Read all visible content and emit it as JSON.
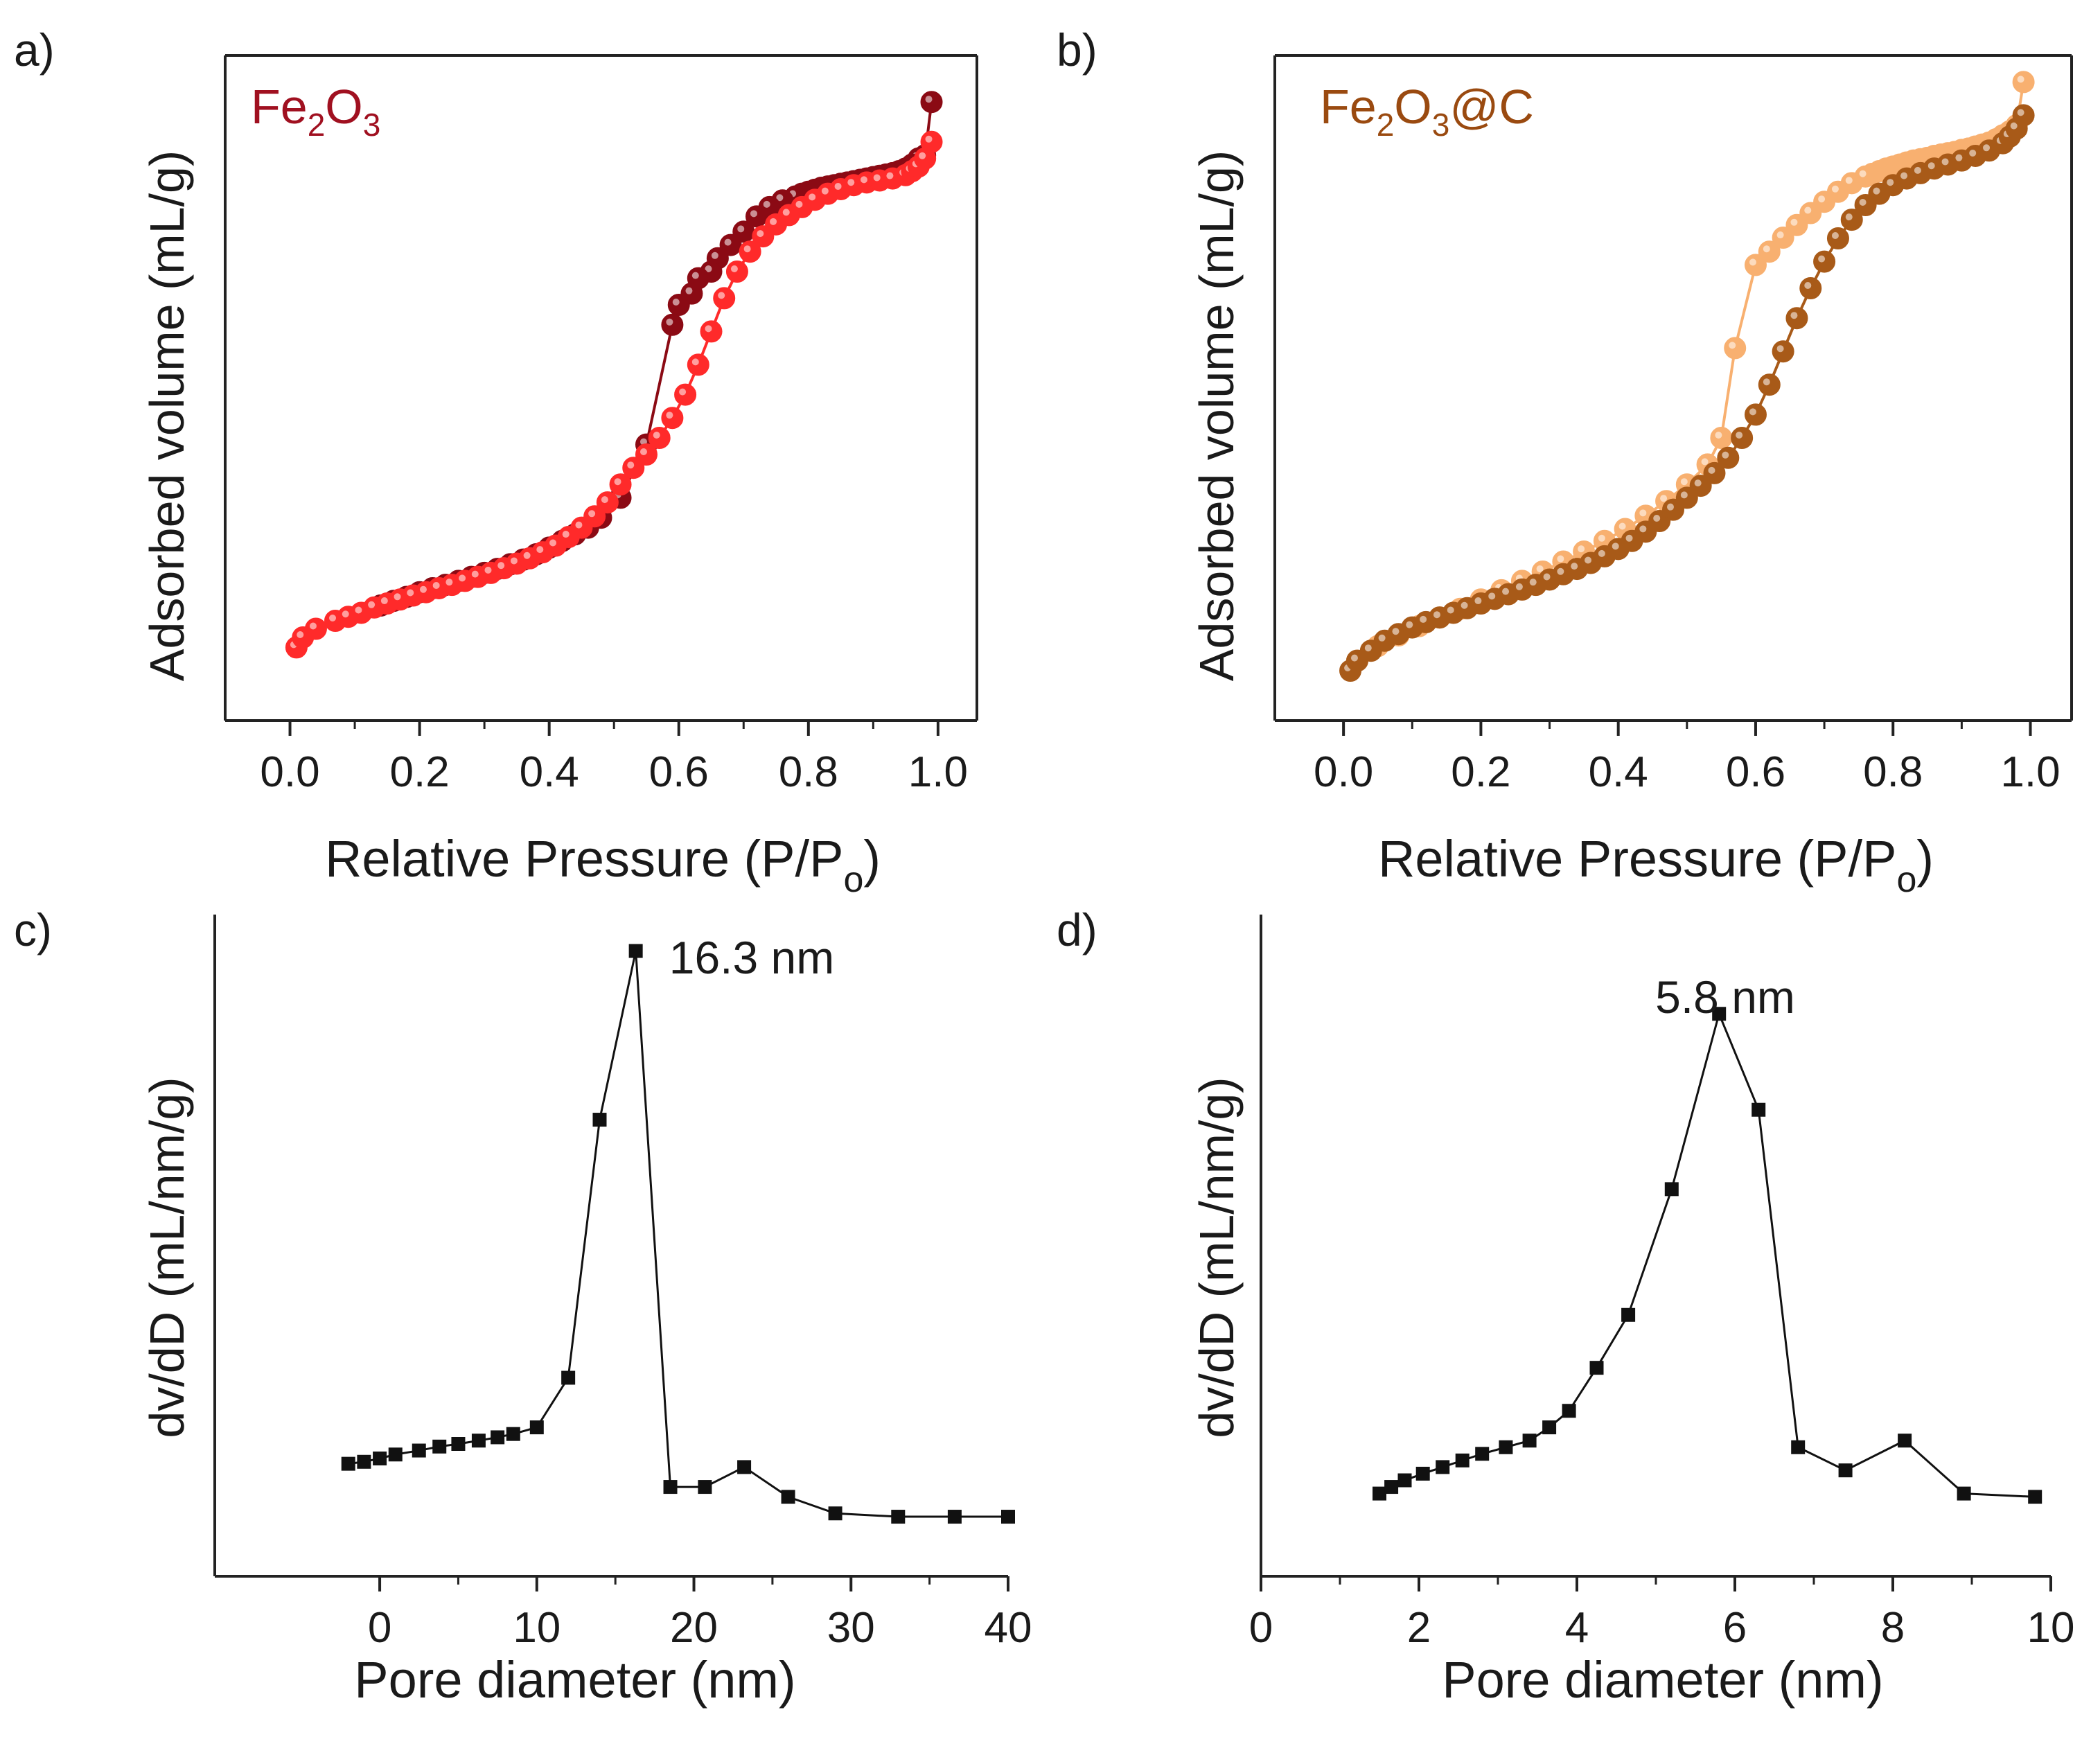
{
  "figure": {
    "panels": [
      {
        "letter": "a)",
        "sample_prefix": "Fe",
        "sub1": "2",
        "mid": "O",
        "sub2": "3",
        "suffix": ""
      },
      {
        "letter": "b)",
        "sample_prefix": "Fe",
        "sub1": "2",
        "mid": "O",
        "sub2": "3",
        "suffix": "@C"
      },
      {
        "letter": "c)",
        "peak_label": "16.3 nm"
      },
      {
        "letter": "d)",
        "peak_label": "5.8 nm"
      }
    ]
  },
  "colors": {
    "fe2o3_adsorption": "#ff2a2a",
    "fe2o3_desorption": "#8b0a14",
    "fe2o3_label": "#a01020",
    "fe2o3c_adsorption": "#a85a18",
    "fe2o3c_desorption": "#f8b070",
    "fe2o3c_label": "#9a4a10",
    "pore": "#111111"
  },
  "chart_data": [
    {
      "type": "scatter",
      "panel": "a",
      "title": "Fe2O3",
      "xlabel_main": "Relative Pressure (P/P",
      "xlabel_sub": "o",
      "xlabel_end": ")",
      "ylabel": "Adsorbed volume (mL/g)",
      "xlim": [
        -0.1,
        1.06
      ],
      "ylim": [
        0,
        100
      ],
      "xticks": [
        "0.0",
        "0.2",
        "0.4",
        "0.6",
        "0.8",
        "1.0"
      ],
      "xtick_values": [
        0.0,
        0.2,
        0.4,
        0.6,
        0.8,
        1.0
      ],
      "series": [
        {
          "name": "adsorption",
          "x": [
            0.01,
            0.02,
            0.04,
            0.07,
            0.09,
            0.11,
            0.13,
            0.15,
            0.17,
            0.19,
            0.21,
            0.23,
            0.25,
            0.27,
            0.29,
            0.31,
            0.33,
            0.35,
            0.37,
            0.39,
            0.41,
            0.43,
            0.45,
            0.47,
            0.49,
            0.51,
            0.53,
            0.55,
            0.57,
            0.59,
            0.61,
            0.63,
            0.65,
            0.67,
            0.69,
            0.71,
            0.73,
            0.75,
            0.77,
            0.79,
            0.81,
            0.83,
            0.85,
            0.87,
            0.89,
            0.91,
            0.93,
            0.95,
            0.96,
            0.97,
            0.98,
            0.99
          ],
          "y": [
            11,
            12.5,
            13.8,
            15,
            15.6,
            16.2,
            17,
            17.6,
            18.2,
            18.8,
            19.3,
            19.9,
            20.4,
            21,
            21.6,
            22.2,
            22.9,
            23.6,
            24.4,
            25.3,
            26.3,
            27.6,
            29,
            30.7,
            32.8,
            35.5,
            38,
            40,
            42.5,
            45.5,
            49,
            53.5,
            58.5,
            63.5,
            67.5,
            70.5,
            72.8,
            74.6,
            76,
            77.2,
            78.3,
            79.2,
            79.9,
            80.5,
            80.9,
            81.2,
            81.5,
            82,
            82.6,
            83.3,
            84.5,
            87
          ]
        },
        {
          "name": "desorption",
          "x": [
            0.99,
            0.98,
            0.97,
            0.96,
            0.95,
            0.94,
            0.93,
            0.92,
            0.91,
            0.9,
            0.89,
            0.88,
            0.87,
            0.86,
            0.85,
            0.84,
            0.83,
            0.82,
            0.81,
            0.8,
            0.79,
            0.78,
            0.76,
            0.74,
            0.72,
            0.7,
            0.68,
            0.66,
            0.65,
            0.63,
            0.62,
            0.6,
            0.59,
            0.55,
            0.51,
            0.48,
            0.46,
            0.44,
            0.42,
            0.4,
            0.38,
            0.36,
            0.34,
            0.32,
            0.3,
            0.28,
            0.26,
            0.24,
            0.22,
            0.2,
            0.18,
            0.16,
            0.14
          ],
          "y": [
            93,
            85,
            84.5,
            83.6,
            83,
            82.6,
            82.3,
            82.1,
            81.9,
            81.7,
            81.5,
            81.3,
            81.1,
            80.9,
            80.7,
            80.5,
            80.3,
            80.1,
            79.8,
            79.5,
            79.2,
            78.8,
            78.2,
            77.2,
            75.8,
            73.5,
            71.5,
            69.5,
            67.5,
            66.5,
            64.2,
            62.5,
            59.5,
            41.5,
            33.5,
            30.5,
            29,
            28,
            27,
            26,
            25,
            24.2,
            23.5,
            22.8,
            22.2,
            21.6,
            21,
            20.4,
            19.9,
            19.3,
            18.6,
            18,
            17.3
          ]
        }
      ]
    },
    {
      "type": "scatter",
      "panel": "b",
      "title": "Fe2O3@C",
      "xlabel_main": "Relative Pressure (P/P",
      "xlabel_sub": "o",
      "xlabel_end": ")",
      "ylabel": "Adsorbed volume (mL/g)",
      "xlim": [
        -0.1,
        1.06
      ],
      "ylim": [
        0,
        100
      ],
      "xticks": [
        "0.0",
        "0.2",
        "0.4",
        "0.6",
        "0.8",
        "1.0"
      ],
      "xtick_values": [
        0.0,
        0.2,
        0.4,
        0.6,
        0.8,
        1.0
      ],
      "series": [
        {
          "name": "adsorption",
          "x": [
            0.01,
            0.02,
            0.04,
            0.06,
            0.08,
            0.1,
            0.12,
            0.14,
            0.16,
            0.18,
            0.2,
            0.22,
            0.24,
            0.26,
            0.28,
            0.3,
            0.32,
            0.34,
            0.36,
            0.38,
            0.4,
            0.42,
            0.44,
            0.46,
            0.48,
            0.5,
            0.52,
            0.54,
            0.56,
            0.58,
            0.6,
            0.62,
            0.64,
            0.66,
            0.68,
            0.7,
            0.72,
            0.74,
            0.76,
            0.78,
            0.8,
            0.82,
            0.84,
            0.86,
            0.88,
            0.9,
            0.92,
            0.94,
            0.96,
            0.97,
            0.98,
            0.99
          ],
          "y": [
            7.5,
            9,
            10.5,
            12,
            13,
            14,
            14.8,
            15.5,
            16.2,
            16.9,
            17.6,
            18.3,
            19,
            19.7,
            20.4,
            21.2,
            22,
            22.8,
            23.7,
            24.7,
            25.8,
            27,
            28.4,
            30,
            31.7,
            33.5,
            35.3,
            37.2,
            39.5,
            42.5,
            46,
            50.5,
            55.5,
            60.5,
            65,
            69,
            72.5,
            75.3,
            77.5,
            79.2,
            80.5,
            81.5,
            82.3,
            83,
            83.6,
            84.2,
            84.9,
            85.7,
            86.8,
            87.8,
            89,
            91
          ]
        },
        {
          "name": "desorption",
          "x": [
            0.99,
            0.98,
            0.97,
            0.96,
            0.95,
            0.94,
            0.93,
            0.92,
            0.91,
            0.9,
            0.89,
            0.88,
            0.87,
            0.86,
            0.85,
            0.84,
            0.83,
            0.82,
            0.81,
            0.8,
            0.79,
            0.78,
            0.77,
            0.76,
            0.74,
            0.72,
            0.7,
            0.68,
            0.66,
            0.64,
            0.62,
            0.6,
            0.57,
            0.55,
            0.53,
            0.5,
            0.47,
            0.44,
            0.41,
            0.38,
            0.35,
            0.32,
            0.29,
            0.26,
            0.23,
            0.2,
            0.17,
            0.14,
            0.11,
            0.08,
            0.05,
            0.02
          ],
          "y": [
            96,
            89.5,
            88.6,
            88,
            87.4,
            86.9,
            86.6,
            86.3,
            86,
            85.8,
            85.5,
            85.3,
            85.1,
            84.9,
            84.6,
            84.4,
            84.2,
            83.9,
            83.6,
            83.3,
            83,
            82.6,
            82.2,
            81.8,
            80.8,
            79.5,
            78,
            76.3,
            74.5,
            72.6,
            70.5,
            68.5,
            56,
            42.5,
            38.5,
            35.5,
            33,
            30.8,
            28.8,
            27,
            25.4,
            23.9,
            22.4,
            21,
            19.6,
            18.2,
            16.8,
            15.5,
            14.2,
            12.8,
            11.2,
            9
          ]
        }
      ]
    },
    {
      "type": "line",
      "panel": "c",
      "xlabel": "Pore diameter (nm)",
      "ylabel": "dv/dD (mL/nm/g)",
      "xlim": [
        -10.5,
        40
      ],
      "ylim": [
        0,
        100
      ],
      "xticks": [
        "0",
        "10",
        "20",
        "30",
        "40"
      ],
      "xtick_values": [
        0,
        10,
        20,
        30,
        40
      ],
      "x": [
        -2,
        -1,
        0,
        1,
        2.5,
        3.8,
        5,
        6.3,
        7.5,
        8.5,
        10,
        12,
        14,
        16.3,
        18.5,
        20.7,
        23.2,
        26,
        29,
        33,
        36.6,
        40
      ],
      "y": [
        17,
        17.3,
        17.8,
        18.4,
        19,
        19.6,
        20,
        20.5,
        21,
        21.5,
        22.5,
        30,
        69,
        94.5,
        13.5,
        13.5,
        16.5,
        12,
        9.5,
        9,
        9,
        9
      ]
    },
    {
      "type": "line",
      "panel": "d",
      "xlabel": "Pore diameter (nm)",
      "ylabel": "dv/dD (mL/nm/g)",
      "xlim": [
        0,
        10
      ],
      "ylim": [
        0,
        100
      ],
      "xticks": [
        "0",
        "2",
        "4",
        "6",
        "8",
        "10"
      ],
      "xtick_values": [
        0,
        2,
        4,
        6,
        8,
        10
      ],
      "x": [
        1.5,
        1.65,
        1.82,
        2.05,
        2.3,
        2.55,
        2.8,
        3.1,
        3.4,
        3.65,
        3.9,
        4.25,
        4.65,
        5.2,
        5.8,
        6.3,
        6.8,
        7.4,
        8.15,
        8.9,
        9.8
      ],
      "y": [
        12.5,
        13.5,
        14.5,
        15.5,
        16.5,
        17.5,
        18.5,
        19.5,
        20.5,
        22.5,
        25,
        31.5,
        39.5,
        58.5,
        85,
        70.5,
        19.5,
        16,
        20.5,
        12.5,
        12
      ]
    }
  ]
}
